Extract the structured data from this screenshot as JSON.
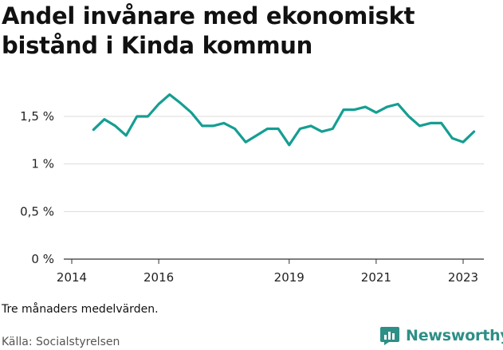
{
  "title": "Andel invånare med ekonomiskt bistånd i Kinda kommun",
  "note": "Tre månaders medelvärden.",
  "source": "Källa: Socialstyrelsen",
  "brand": {
    "name": "Newsworthy",
    "logo_icon": "bar-chart-icon",
    "color": "#2e8f87"
  },
  "chart_data": {
    "type": "line",
    "title": "Andel invånare med ekonomiskt bistånd i Kinda kommun",
    "xlabel": "",
    "ylabel": "",
    "x_ticks": [
      "2014",
      "2016",
      "2019",
      "2021",
      "2023"
    ],
    "y_ticks": [
      "0 %",
      "0,5 %",
      "1 %",
      "1,5 %"
    ],
    "y_tick_values": [
      0,
      0.5,
      1,
      1.5
    ],
    "ylim": [
      0,
      1.75
    ],
    "grid": "horizontal",
    "color": "#159e92",
    "series": [
      {
        "x": [
          2014.5,
          2014.75,
          2015,
          2015.25,
          2015.5,
          2015.75,
          2016,
          2016.25,
          2016.5,
          2016.75,
          2017,
          2017.25,
          2017.5,
          2017.75,
          2018,
          2018.25,
          2018.5,
          2018.75,
          2019,
          2019.25,
          2019.5,
          2019.75,
          2020,
          2020.25,
          2020.5,
          2020.75,
          2021,
          2021.25,
          2021.5,
          2021.75,
          2022,
          2022.25,
          2022.5,
          2022.75,
          2023,
          2023.25
        ],
        "values": [
          1.36,
          1.47,
          1.4,
          1.3,
          1.5,
          1.5,
          1.63,
          1.73,
          1.64,
          1.54,
          1.4,
          1.4,
          1.43,
          1.37,
          1.23,
          1.3,
          1.37,
          1.37,
          1.2,
          1.37,
          1.4,
          1.34,
          1.37,
          1.57,
          1.57,
          1.6,
          1.54,
          1.6,
          1.63,
          1.5,
          1.4,
          1.43,
          1.43,
          1.27,
          1.23,
          1.34
        ]
      }
    ]
  }
}
